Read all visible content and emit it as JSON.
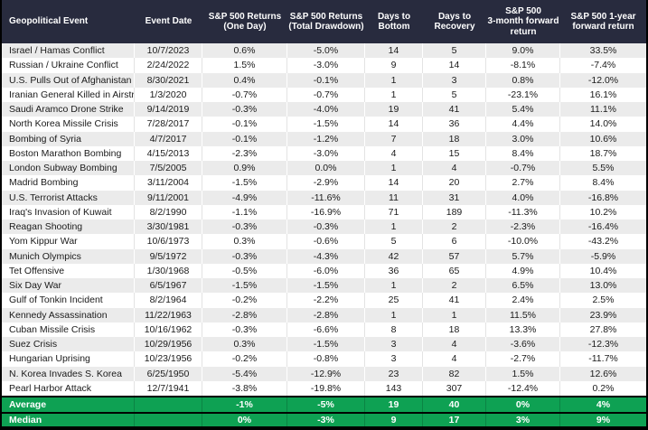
{
  "colors": {
    "header_bg": "#282B3E",
    "header_text": "#FFFFFF",
    "row_stripe": "#EBEBEB",
    "row_plain": "#FFFFFF",
    "summary_green": "#0EA153",
    "border_black": "#000000",
    "text_dark": "#1A1A1A"
  },
  "table": {
    "headers": [
      {
        "id": "event",
        "lines": [
          "Geopolitical Event"
        ]
      },
      {
        "id": "date",
        "lines": [
          "Event Date"
        ]
      },
      {
        "id": "one_day",
        "lines": [
          "S&P 500 Returns",
          "(One Day)"
        ]
      },
      {
        "id": "drawdown",
        "lines": [
          "S&P 500 Returns",
          "(Total Drawdown)"
        ]
      },
      {
        "id": "days_bottom",
        "lines": [
          "Days to Bottom"
        ]
      },
      {
        "id": "days_recovery",
        "lines": [
          "Days to",
          "Recovery"
        ]
      },
      {
        "id": "fwd_3m",
        "lines": [
          "S&P 500",
          "3-month forward",
          "return"
        ]
      },
      {
        "id": "fwd_1y",
        "lines": [
          "S&P 500 1-year",
          "forward return"
        ]
      }
    ],
    "rows": [
      [
        "Israel / Hamas Conflict",
        "10/7/2023",
        "0.6%",
        "-5.0%",
        "14",
        "5",
        "9.0%",
        "33.5%"
      ],
      [
        "Russian / Ukraine Conflict",
        "2/24/2022",
        "1.5%",
        "-3.0%",
        "9",
        "14",
        "-8.1%",
        "-7.4%"
      ],
      [
        "U.S. Pulls Out of Afghanistan",
        "8/30/2021",
        "0.4%",
        "-0.1%",
        "1",
        "3",
        "0.8%",
        "-12.0%"
      ],
      [
        "Iranian General Killed in Airstrike",
        "1/3/2020",
        "-0.7%",
        "-0.7%",
        "1",
        "5",
        "-23.1%",
        "16.1%"
      ],
      [
        "Saudi Aramco Drone Strike",
        "9/14/2019",
        "-0.3%",
        "-4.0%",
        "19",
        "41",
        "5.4%",
        "11.1%"
      ],
      [
        "North Korea Missile Crisis",
        "7/28/2017",
        "-0.1%",
        "-1.5%",
        "14",
        "36",
        "4.4%",
        "14.0%"
      ],
      [
        "Bombing of Syria",
        "4/7/2017",
        "-0.1%",
        "-1.2%",
        "7",
        "18",
        "3.0%",
        "10.6%"
      ],
      [
        "Boston Marathon Bombing",
        "4/15/2013",
        "-2.3%",
        "-3.0%",
        "4",
        "15",
        "8.4%",
        "18.7%"
      ],
      [
        "London Subway Bombing",
        "7/5/2005",
        "0.9%",
        "0.0%",
        "1",
        "4",
        "-0.7%",
        "5.5%"
      ],
      [
        "Madrid Bombing",
        "3/11/2004",
        "-1.5%",
        "-2.9%",
        "14",
        "20",
        "2.7%",
        "8.4%"
      ],
      [
        "U.S. Terrorist Attacks",
        "9/11/2001",
        "-4.9%",
        "-11.6%",
        "11",
        "31",
        "4.0%",
        "-16.8%"
      ],
      [
        "Iraq's Invasion of Kuwait",
        "8/2/1990",
        "-1.1%",
        "-16.9%",
        "71",
        "189",
        "-11.3%",
        "10.2%"
      ],
      [
        "Reagan Shooting",
        "3/30/1981",
        "-0.3%",
        "-0.3%",
        "1",
        "2",
        "-2.3%",
        "-16.4%"
      ],
      [
        "Yom Kippur War",
        "10/6/1973",
        "0.3%",
        "-0.6%",
        "5",
        "6",
        "-10.0%",
        "-43.2%"
      ],
      [
        "Munich Olympics",
        "9/5/1972",
        "-0.3%",
        "-4.3%",
        "42",
        "57",
        "5.7%",
        "-5.9%"
      ],
      [
        "Tet Offensive",
        "1/30/1968",
        "-0.5%",
        "-6.0%",
        "36",
        "65",
        "4.9%",
        "10.4%"
      ],
      [
        "Six Day War",
        "6/5/1967",
        "-1.5%",
        "-1.5%",
        "1",
        "2",
        "6.5%",
        "13.0%"
      ],
      [
        "Gulf of Tonkin Incident",
        "8/2/1964",
        "-0.2%",
        "-2.2%",
        "25",
        "41",
        "2.4%",
        "2.5%"
      ],
      [
        "Kennedy Assassination",
        "11/22/1963",
        "-2.8%",
        "-2.8%",
        "1",
        "1",
        "11.5%",
        "23.9%"
      ],
      [
        "Cuban Missile Crisis",
        "10/16/1962",
        "-0.3%",
        "-6.6%",
        "8",
        "18",
        "13.3%",
        "27.8%"
      ],
      [
        "Suez Crisis",
        "10/29/1956",
        "0.3%",
        "-1.5%",
        "3",
        "4",
        "-3.6%",
        "-12.3%"
      ],
      [
        "Hungarian Uprising",
        "10/23/1956",
        "-0.2%",
        "-0.8%",
        "3",
        "4",
        "-2.7%",
        "-11.7%"
      ],
      [
        "N. Korea Invades S. Korea",
        "6/25/1950",
        "-5.4%",
        "-12.9%",
        "23",
        "82",
        "1.5%",
        "12.6%"
      ],
      [
        "Pearl Harbor Attack",
        "12/7/1941",
        "-3.8%",
        "-19.8%",
        "143",
        "307",
        "-12.4%",
        "0.2%"
      ]
    ],
    "summary_rows": [
      [
        "Average",
        "",
        "-1%",
        "-5%",
        "19",
        "40",
        "0%",
        "4%"
      ],
      [
        "Median",
        "",
        "0%",
        "-3%",
        "9",
        "17",
        "3%",
        "9%"
      ]
    ]
  }
}
